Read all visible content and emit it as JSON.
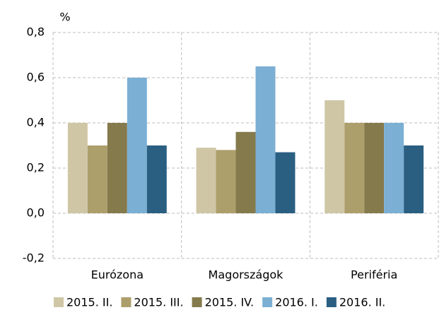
{
  "chart_data": {
    "type": "bar",
    "y_label": "%",
    "categories": [
      "Eurózona",
      "Magországok",
      "Periféria"
    ],
    "series": [
      {
        "name": "2015. II.",
        "color": "#cfc6a5",
        "values": [
          0.4,
          0.29,
          0.5
        ]
      },
      {
        "name": "2015. III.",
        "color": "#ad9f6b",
        "values": [
          0.3,
          0.28,
          0.4
        ]
      },
      {
        "name": "2015. IV.",
        "color": "#857a4c",
        "values": [
          0.4,
          0.36,
          0.4
        ]
      },
      {
        "name": "2016. I.",
        "color": "#7bafd4",
        "values": [
          0.6,
          0.65,
          0.4
        ]
      },
      {
        "name": "2016. II.",
        "color": "#2a5f82",
        "values": [
          0.3,
          0.27,
          0.3
        ]
      }
    ],
    "ylim": [
      -0.2,
      0.8
    ],
    "yticks": [
      {
        "value": -0.2,
        "label": "-0,2"
      },
      {
        "value": 0,
        "label": "0,0"
      },
      {
        "value": 0.2,
        "label": "0,2"
      },
      {
        "value": 0.4,
        "label": "0,4"
      },
      {
        "value": 0.6,
        "label": "0,6"
      },
      {
        "value": 0.8,
        "label": "0,8"
      }
    ],
    "grid": true,
    "legend": "bottom"
  }
}
